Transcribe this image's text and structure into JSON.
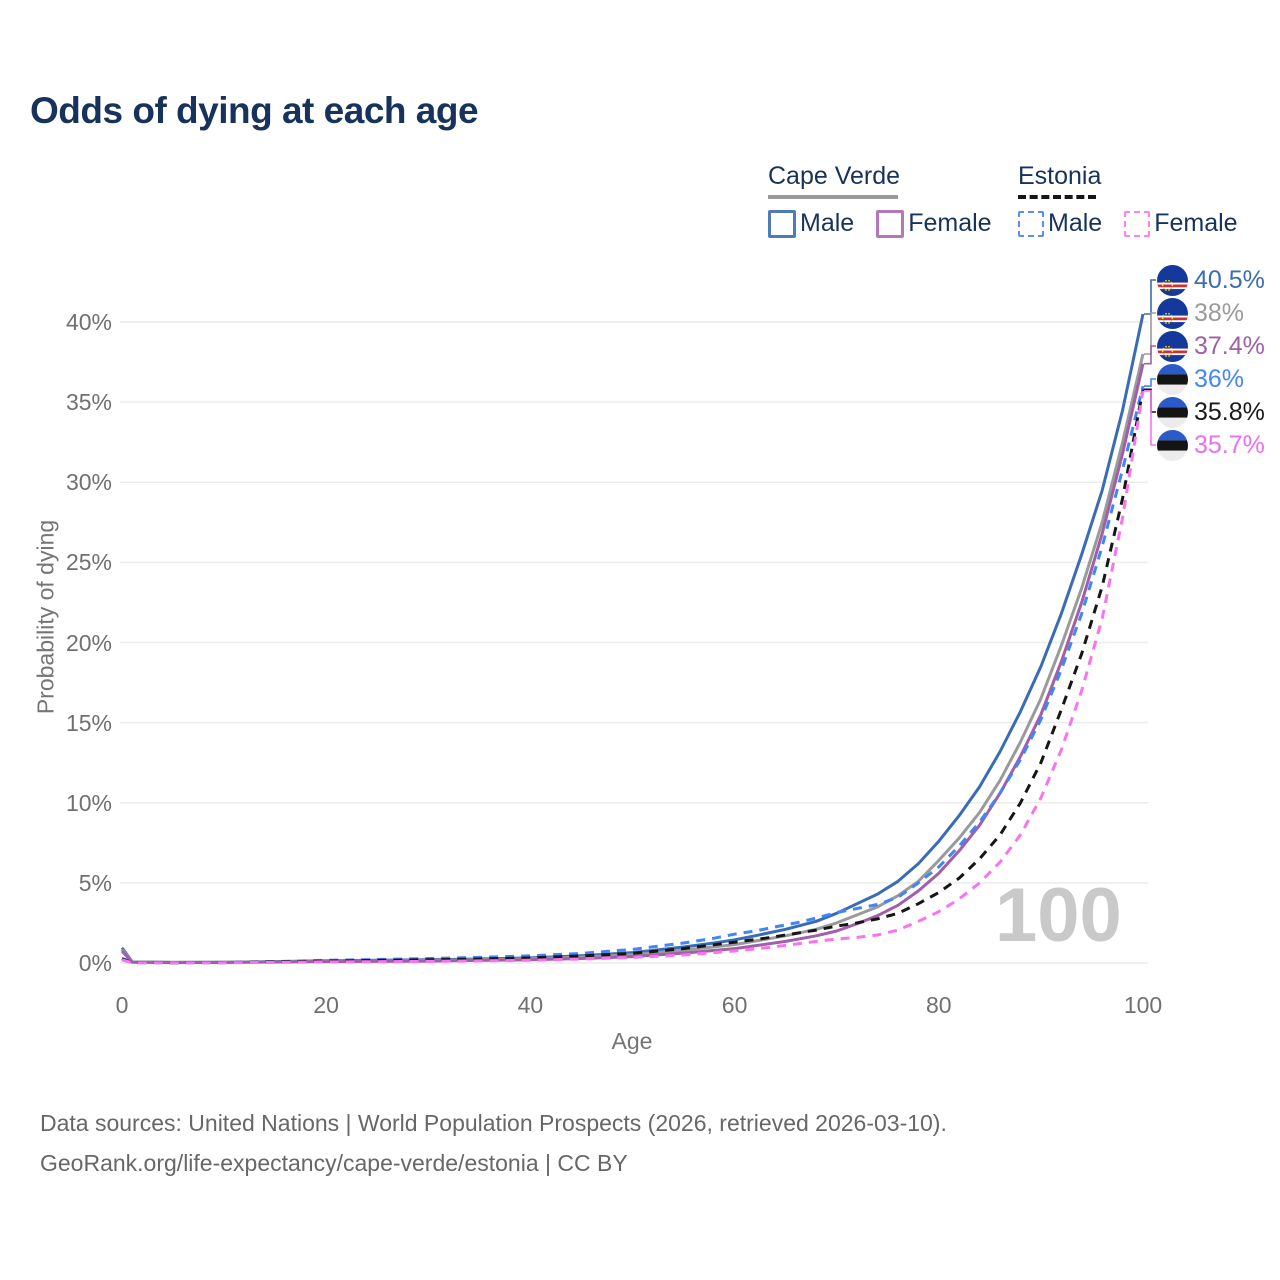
{
  "title": "Odds of dying at each age",
  "legend": {
    "groups": [
      {
        "label": "Cape Verde",
        "underline_style": "solid",
        "underline_color": "#9a9a9a",
        "underline_width": 130,
        "items": [
          {
            "label": "Male",
            "swatch_color": "#4f7cb8",
            "dashed": false
          },
          {
            "label": "Female",
            "swatch_color": "#b478ba",
            "dashed": false
          }
        ]
      },
      {
        "label": "Estonia",
        "underline_style": "dashed",
        "underline_color": "#161616",
        "underline_width": 78,
        "items": [
          {
            "label": "Male",
            "swatch_color": "#5a8ef2",
            "dashed": true
          },
          {
            "label": "Female",
            "swatch_color": "#fb80f4",
            "dashed": true
          }
        ]
      }
    ]
  },
  "watermark": "100",
  "footer": {
    "line1": "Data sources: United Nations | World Population Prospects (2026, retrieved 2026-03-10).",
    "line2": "GeoRank.org/life-expectancy/cape-verde/estonia | CC BY"
  },
  "chart_data": {
    "type": "line",
    "xlabel": "Age",
    "ylabel": "Probability of dying",
    "xlim": [
      0,
      100
    ],
    "ylim": [
      0,
      40.5
    ],
    "x_ticks": [
      0,
      20,
      40,
      60,
      80,
      100
    ],
    "y_ticks": [
      0,
      5,
      10,
      15,
      20,
      25,
      30,
      35,
      40
    ],
    "y_suffix": "%",
    "grid": "horizontal",
    "legend_position": "top-right",
    "series": [
      {
        "name": "Cape Verde Male",
        "color": "#3a6cb5",
        "dashed": false,
        "end_label": "40.5%",
        "end_label_color": "#3a6cb5",
        "flag": "cape-verde",
        "points": [
          [
            0,
            0.95
          ],
          [
            1,
            0.07
          ],
          [
            5,
            0.04
          ],
          [
            10,
            0.05
          ],
          [
            15,
            0.09
          ],
          [
            20,
            0.14
          ],
          [
            25,
            0.17
          ],
          [
            30,
            0.2
          ],
          [
            35,
            0.25
          ],
          [
            40,
            0.32
          ],
          [
            45,
            0.45
          ],
          [
            50,
            0.65
          ],
          [
            55,
            1.0
          ],
          [
            58,
            1.25
          ],
          [
            60,
            1.45
          ],
          [
            62,
            1.7
          ],
          [
            65,
            2.1
          ],
          [
            68,
            2.6
          ],
          [
            70,
            3.1
          ],
          [
            72,
            3.7
          ],
          [
            74,
            4.3
          ],
          [
            76,
            5.1
          ],
          [
            78,
            6.2
          ],
          [
            80,
            7.6
          ],
          [
            82,
            9.2
          ],
          [
            84,
            11.0
          ],
          [
            86,
            13.2
          ],
          [
            88,
            15.7
          ],
          [
            90,
            18.5
          ],
          [
            92,
            21.8
          ],
          [
            94,
            25.5
          ],
          [
            96,
            29.5
          ],
          [
            98,
            34.5
          ],
          [
            100,
            40.5
          ]
        ]
      },
      {
        "name": "Cape Verde Both sexes",
        "color": "#9a9a9a",
        "dashed": false,
        "end_label": "38%",
        "end_label_color": "#9a9a9a",
        "flag": "cape-verde",
        "points": [
          [
            0,
            0.85
          ],
          [
            1,
            0.06
          ],
          [
            5,
            0.035
          ],
          [
            10,
            0.04
          ],
          [
            15,
            0.07
          ],
          [
            20,
            0.11
          ],
          [
            25,
            0.13
          ],
          [
            30,
            0.16
          ],
          [
            35,
            0.2
          ],
          [
            40,
            0.26
          ],
          [
            45,
            0.37
          ],
          [
            50,
            0.52
          ],
          [
            55,
            0.8
          ],
          [
            60,
            1.15
          ],
          [
            65,
            1.7
          ],
          [
            68,
            2.1
          ],
          [
            70,
            2.5
          ],
          [
            72,
            3.0
          ],
          [
            74,
            3.5
          ],
          [
            76,
            4.2
          ],
          [
            78,
            5.1
          ],
          [
            80,
            6.4
          ],
          [
            82,
            7.8
          ],
          [
            84,
            9.4
          ],
          [
            86,
            11.4
          ],
          [
            88,
            13.8
          ],
          [
            90,
            16.5
          ],
          [
            92,
            19.8
          ],
          [
            94,
            23.4
          ],
          [
            96,
            27.5
          ],
          [
            98,
            32.5
          ],
          [
            100,
            38
          ]
        ]
      },
      {
        "name": "Cape Verde Female",
        "color": "#a05fa8",
        "dashed": false,
        "end_label": "37.4%",
        "end_label_color": "#a05fa8",
        "flag": "cape-verde",
        "points": [
          [
            0,
            0.75
          ],
          [
            1,
            0.05
          ],
          [
            5,
            0.03
          ],
          [
            10,
            0.035
          ],
          [
            15,
            0.06
          ],
          [
            20,
            0.09
          ],
          [
            25,
            0.1
          ],
          [
            30,
            0.12
          ],
          [
            35,
            0.16
          ],
          [
            40,
            0.2
          ],
          [
            45,
            0.28
          ],
          [
            50,
            0.4
          ],
          [
            55,
            0.62
          ],
          [
            60,
            0.9
          ],
          [
            65,
            1.35
          ],
          [
            68,
            1.7
          ],
          [
            70,
            2.0
          ],
          [
            72,
            2.45
          ],
          [
            74,
            2.95
          ],
          [
            76,
            3.6
          ],
          [
            78,
            4.5
          ],
          [
            80,
            5.6
          ],
          [
            82,
            7.0
          ],
          [
            84,
            8.6
          ],
          [
            86,
            10.6
          ],
          [
            88,
            12.9
          ],
          [
            90,
            15.5
          ],
          [
            92,
            18.8
          ],
          [
            94,
            22.5
          ],
          [
            96,
            26.8
          ],
          [
            98,
            31.8
          ],
          [
            100,
            37.4
          ]
        ]
      },
      {
        "name": "Estonia Male",
        "color": "#4285f4",
        "dashed": true,
        "end_label": "36%",
        "end_label_color": "#4285f4",
        "flag": "estonia",
        "points": [
          [
            0,
            0.3
          ],
          [
            1,
            0.03
          ],
          [
            5,
            0.025
          ],
          [
            10,
            0.03
          ],
          [
            15,
            0.08
          ],
          [
            20,
            0.17
          ],
          [
            25,
            0.22
          ],
          [
            30,
            0.28
          ],
          [
            35,
            0.35
          ],
          [
            40,
            0.45
          ],
          [
            45,
            0.6
          ],
          [
            50,
            0.85
          ],
          [
            55,
            1.25
          ],
          [
            58,
            1.55
          ],
          [
            60,
            1.8
          ],
          [
            62,
            2.0
          ],
          [
            64,
            2.25
          ],
          [
            66,
            2.5
          ],
          [
            68,
            2.8
          ],
          [
            70,
            3.15
          ],
          [
            72,
            3.4
          ],
          [
            74,
            3.65
          ],
          [
            76,
            4.1
          ],
          [
            78,
            5.0
          ],
          [
            80,
            6.0
          ],
          [
            82,
            7.3
          ],
          [
            84,
            8.8
          ],
          [
            86,
            10.6
          ],
          [
            88,
            12.7
          ],
          [
            90,
            15.2
          ],
          [
            92,
            18.3
          ],
          [
            94,
            21.8
          ],
          [
            96,
            26.0
          ],
          [
            98,
            30.8
          ],
          [
            100,
            36
          ]
        ]
      },
      {
        "name": "Estonia Both sexes",
        "color": "#161616",
        "dashed": true,
        "end_label": "35.8%",
        "end_label_color": "#1a1a1a",
        "flag": "estonia",
        "points": [
          [
            0,
            0.25
          ],
          [
            1,
            0.025
          ],
          [
            5,
            0.02
          ],
          [
            10,
            0.025
          ],
          [
            15,
            0.07
          ],
          [
            20,
            0.12
          ],
          [
            25,
            0.16
          ],
          [
            30,
            0.2
          ],
          [
            35,
            0.25
          ],
          [
            40,
            0.32
          ],
          [
            45,
            0.44
          ],
          [
            50,
            0.6
          ],
          [
            55,
            0.9
          ],
          [
            60,
            1.3
          ],
          [
            63,
            1.55
          ],
          [
            65,
            1.75
          ],
          [
            68,
            2.05
          ],
          [
            70,
            2.3
          ],
          [
            72,
            2.5
          ],
          [
            74,
            2.75
          ],
          [
            76,
            3.1
          ],
          [
            78,
            3.7
          ],
          [
            80,
            4.4
          ],
          [
            82,
            5.3
          ],
          [
            84,
            6.5
          ],
          [
            86,
            8.0
          ],
          [
            88,
            10.0
          ],
          [
            90,
            12.5
          ],
          [
            92,
            15.8
          ],
          [
            94,
            19.3
          ],
          [
            96,
            23.5
          ],
          [
            98,
            29.0
          ],
          [
            100,
            35.8
          ]
        ]
      },
      {
        "name": "Estonia Female",
        "color": "#f873f0",
        "dashed": true,
        "end_label": "35.7%",
        "end_label_color": "#ee6ef2",
        "flag": "estonia",
        "points": [
          [
            0,
            0.2
          ],
          [
            1,
            0.02
          ],
          [
            5,
            0.015
          ],
          [
            10,
            0.02
          ],
          [
            15,
            0.04
          ],
          [
            20,
            0.07
          ],
          [
            25,
            0.08
          ],
          [
            30,
            0.1
          ],
          [
            35,
            0.13
          ],
          [
            40,
            0.17
          ],
          [
            45,
            0.25
          ],
          [
            50,
            0.35
          ],
          [
            55,
            0.5
          ],
          [
            60,
            0.75
          ],
          [
            63,
            0.95
          ],
          [
            65,
            1.1
          ],
          [
            68,
            1.35
          ],
          [
            70,
            1.5
          ],
          [
            72,
            1.6
          ],
          [
            74,
            1.75
          ],
          [
            76,
            2.05
          ],
          [
            78,
            2.6
          ],
          [
            80,
            3.2
          ],
          [
            82,
            4.0
          ],
          [
            84,
            5.0
          ],
          [
            86,
            6.3
          ],
          [
            88,
            8.0
          ],
          [
            90,
            10.3
          ],
          [
            92,
            13.3
          ],
          [
            94,
            17.0
          ],
          [
            96,
            21.5
          ],
          [
            98,
            27.8
          ],
          [
            100,
            35.7
          ]
        ]
      }
    ]
  }
}
